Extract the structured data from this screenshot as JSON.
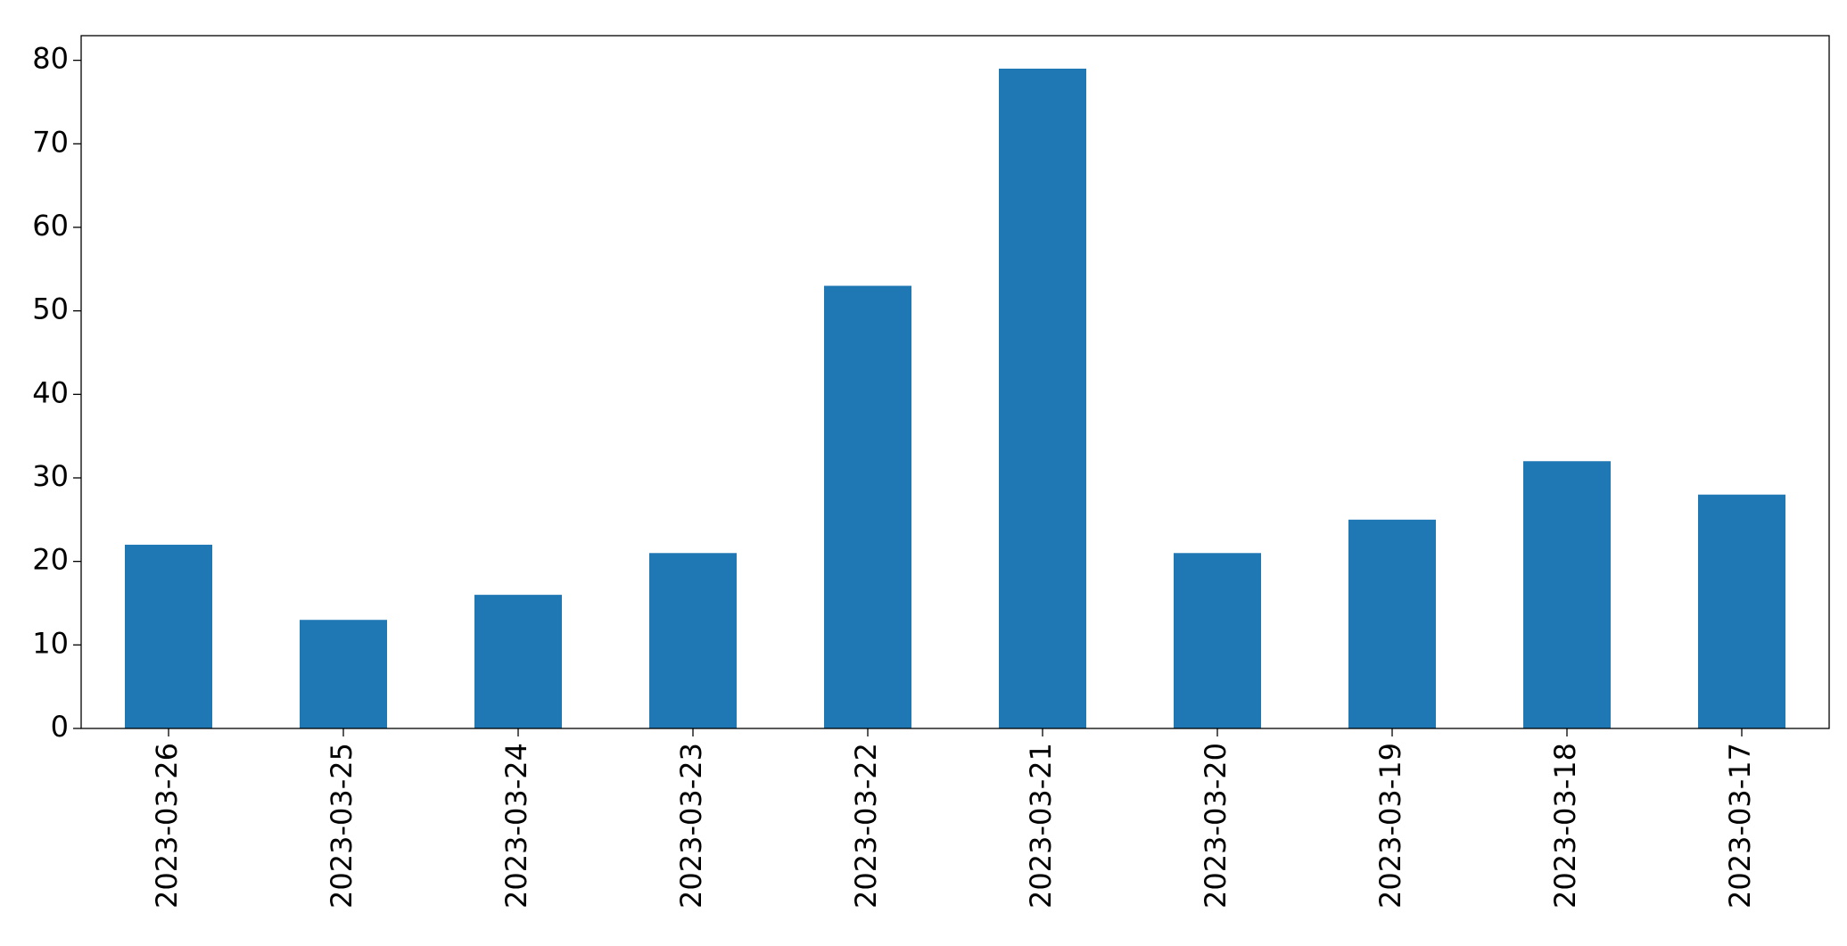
{
  "chart_data": {
    "type": "bar",
    "categories": [
      "2023-03-26",
      "2023-03-25",
      "2023-03-24",
      "2023-03-23",
      "2023-03-22",
      "2023-03-21",
      "2023-03-20",
      "2023-03-19",
      "2023-03-18",
      "2023-03-17"
    ],
    "values": [
      22,
      13,
      16,
      21,
      53,
      79,
      21,
      25,
      32,
      28
    ],
    "color": "#1f77b4",
    "ylim": [
      0,
      82.95
    ],
    "yticks": [
      0,
      10,
      20,
      30,
      40,
      50,
      60,
      70,
      80
    ],
    "grid": false
  }
}
